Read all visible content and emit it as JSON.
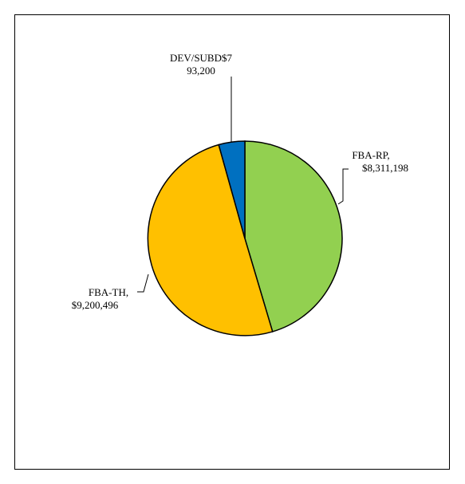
{
  "chart_data": {
    "type": "pie",
    "slices": [
      {
        "name": "FBA-RP",
        "value": 8311198,
        "label_lines": [
          "FBA-RP,",
          "$8,311,198"
        ],
        "color": "#92D050"
      },
      {
        "name": "FBA-TH",
        "value": 9200496,
        "label_lines": [
          "FBA-TH,",
          "$9,200,496"
        ],
        "color": "#FFC000"
      },
      {
        "name": "DEV/SUBD",
        "value": 793200,
        "label_lines": [
          "DEV/SUBD$7",
          "93,200"
        ],
        "color": "#0070C0"
      }
    ],
    "start": "12 o'clock",
    "direction": "clockwise",
    "legend": "none",
    "outline_color": "#000000"
  }
}
